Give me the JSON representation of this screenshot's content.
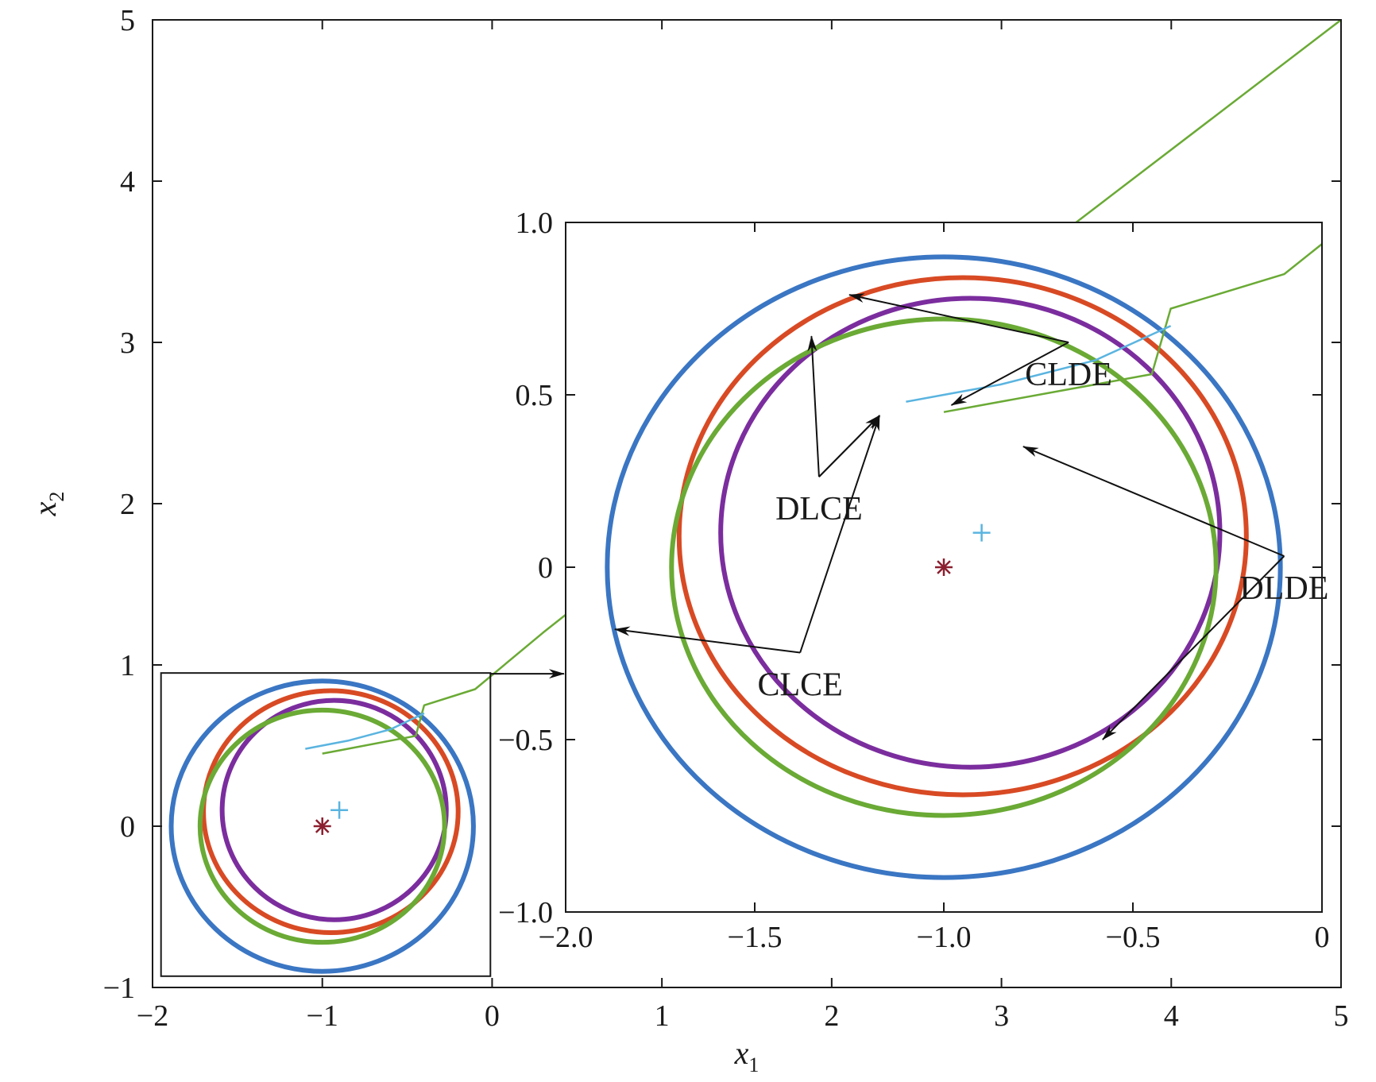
{
  "chart_data": {
    "type": "line",
    "xlabel": "x",
    "xlabel_sub": "1",
    "ylabel": "x",
    "ylabel_sub": "2",
    "main": {
      "xlim": [
        -2,
        5
      ],
      "ylim": [
        -1,
        5
      ],
      "xticks": [
        -2,
        -1,
        0,
        1,
        2,
        3,
        4,
        5
      ],
      "yticks": [
        -1,
        0,
        1,
        2,
        3,
        4,
        5
      ],
      "xtick_labels": [
        "−2",
        "−1",
        "0",
        "1",
        "2",
        "3",
        "4",
        "5"
      ],
      "ytick_labels": [
        "−1",
        "0",
        "1",
        "2",
        "3",
        "4",
        "5"
      ],
      "zoom_box": {
        "x": [
          -1.95,
          -0.01
        ],
        "y": [
          -0.93,
          0.95
        ]
      }
    },
    "inset": {
      "xlim": [
        -2,
        0
      ],
      "ylim": [
        -1,
        1
      ],
      "xticks": [
        -2,
        -1.5,
        -1,
        -0.5,
        0
      ],
      "yticks": [
        -1,
        -0.5,
        0,
        0.5,
        1
      ],
      "xtick_labels": [
        "−2.0",
        "−1.5",
        "−1.0",
        "−0.5",
        "0"
      ],
      "ytick_labels": [
        "−1.0",
        "−0.5",
        "0",
        "0.5",
        "1.0"
      ]
    },
    "series": [
      {
        "kind": "ellipse",
        "color": "#3a76c3",
        "cx": -1.0,
        "cy": 0.0,
        "rx": 0.89,
        "ry": 0.9
      },
      {
        "kind": "ellipse",
        "color": "#d84a24",
        "cx": -0.95,
        "cy": 0.09,
        "rx": 0.75,
        "ry": 0.75
      },
      {
        "kind": "ellipse",
        "color": "#7b2d9e",
        "cx": -0.93,
        "cy": 0.1,
        "rx": 0.66,
        "ry": 0.68
      },
      {
        "kind": "ellipse",
        "color": "#6aaa35",
        "cx": -1.0,
        "cy": 0.0,
        "rx": 0.72,
        "ry": 0.72
      },
      {
        "kind": "trajectory",
        "color": "#6aaa35",
        "x": [
          5.0,
          0.9,
          0.3,
          -0.1,
          -0.4,
          -0.45,
          -0.9,
          -1.0
        ],
        "y": [
          5.0,
          1.7,
          1.2,
          0.85,
          0.75,
          0.56,
          0.47,
          0.45
        ]
      },
      {
        "kind": "trajectory",
        "color": "#5ab4e0",
        "x": [
          -0.4,
          -0.6,
          -0.85,
          -1.0,
          -1.1
        ],
        "y": [
          0.7,
          0.6,
          0.53,
          0.5,
          0.48
        ]
      },
      {
        "kind": "scatter",
        "color": "#5ab4e0",
        "marker": "plus",
        "x": [
          -0.9
        ],
        "y": [
          0.1
        ]
      },
      {
        "kind": "scatter",
        "color": "#8b1f2f",
        "marker": "asterisk",
        "x": [
          -1.0
        ],
        "y": [
          0.0
        ]
      }
    ],
    "annotations": [
      {
        "text": "CLDE",
        "x": -0.67,
        "y": 0.62,
        "targets": [
          [
            -1.25,
            0.79
          ],
          [
            -0.98,
            0.47
          ]
        ]
      },
      {
        "text": "DLCE",
        "x": -1.33,
        "y": 0.23,
        "targets": [
          [
            -1.35,
            0.67
          ],
          [
            -1.17,
            0.44
          ],
          [
            -1.17,
            0.44
          ]
        ]
      },
      {
        "text": "DLDE",
        "x": -0.1,
        "y": 0.0,
        "targets": [
          [
            -0.79,
            0.35
          ],
          [
            -0.58,
            -0.5
          ]
        ]
      },
      {
        "text": "CLCE",
        "x": -1.38,
        "y": -0.28,
        "targets": [
          [
            -1.87,
            -0.18
          ],
          [
            -1.17,
            0.44
          ]
        ]
      }
    ]
  }
}
